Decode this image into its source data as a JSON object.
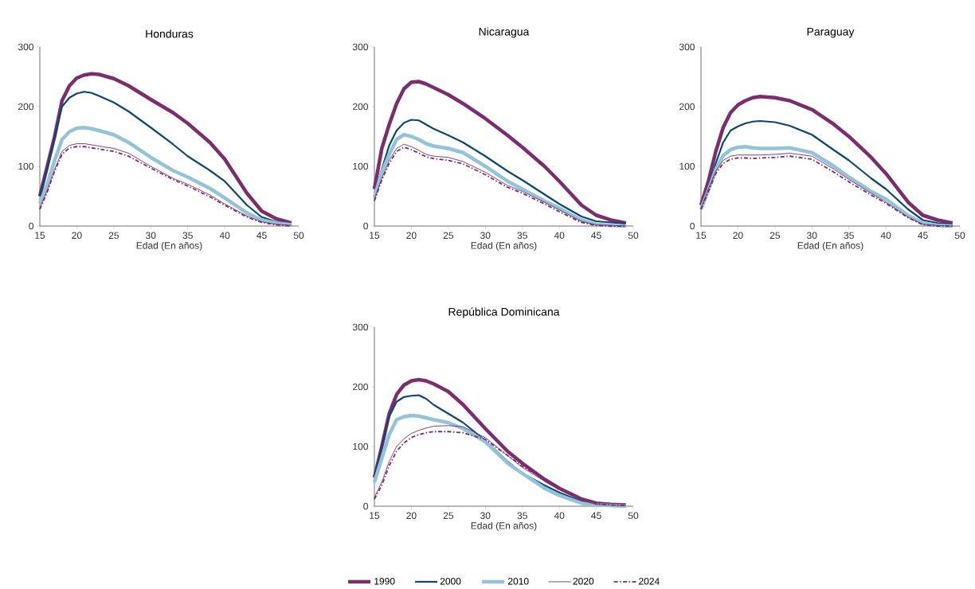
{
  "chart_data": [
    {
      "type": "line",
      "title": "Honduras",
      "xlabel": "Edad (En años)",
      "xlim": [
        15,
        50
      ],
      "xticks": [
        15,
        20,
        25,
        30,
        35,
        40,
        45,
        50
      ],
      "ylim": [
        0,
        300
      ],
      "yticks": [
        0,
        100,
        200,
        300
      ],
      "marker": "none",
      "legend": false,
      "x": [
        15,
        16,
        17,
        18,
        19,
        20,
        21,
        22,
        23,
        25,
        27,
        30,
        33,
        35,
        38,
        40,
        43,
        45,
        47,
        49
      ],
      "series": [
        {
          "color": "#7b2d6e",
          "line_style": "solid",
          "values": [
            50,
            100,
            150,
            210,
            235,
            248,
            253,
            255,
            254,
            247,
            235,
            212,
            190,
            172,
            140,
            112,
            55,
            25,
            12,
            5
          ]
        },
        {
          "color": "#0b4a6e",
          "line_style": "solid",
          "values": [
            50,
            95,
            150,
            200,
            215,
            222,
            225,
            223,
            218,
            207,
            192,
            165,
            137,
            117,
            93,
            75,
            35,
            15,
            7,
            3
          ]
        },
        {
          "color": "#93c3d8",
          "line_style": "solid",
          "values": [
            38,
            70,
            110,
            145,
            158,
            164,
            165,
            163,
            160,
            153,
            140,
            115,
            93,
            82,
            63,
            47,
            22,
            10,
            5,
            2
          ]
        },
        {
          "color": "#7b2d6e",
          "line_style": "solid",
          "values": [
            30,
            60,
            95,
            125,
            135,
            138,
            138,
            136,
            134,
            130,
            122,
            100,
            80,
            70,
            52,
            37,
            17,
            7,
            3,
            1
          ]
        },
        {
          "color": "#7b2d6e",
          "line_style": "dashed",
          "values": [
            28,
            57,
            92,
            120,
            131,
            133,
            133,
            131,
            129,
            125,
            117,
            97,
            78,
            67,
            49,
            35,
            15,
            6,
            2,
            0
          ]
        }
      ]
    },
    {
      "type": "line",
      "title": "Nicaragua",
      "xlabel": "Edad (En años)",
      "xlim": [
        15,
        50
      ],
      "xticks": [
        15,
        20,
        25,
        30,
        35,
        40,
        45,
        50
      ],
      "ylim": [
        0,
        300
      ],
      "yticks": [
        0,
        100,
        200,
        300
      ],
      "marker": "none",
      "legend": false,
      "x": [
        15,
        16,
        17,
        18,
        19,
        20,
        21,
        22,
        23,
        25,
        27,
        30,
        33,
        35,
        38,
        40,
        43,
        45,
        47,
        49
      ],
      "series": [
        {
          "color": "#7b2d6e",
          "line_style": "solid",
          "values": [
            62,
            130,
            170,
            205,
            230,
            241,
            242,
            238,
            232,
            220,
            205,
            180,
            152,
            132,
            100,
            75,
            35,
            18,
            10,
            5
          ]
        },
        {
          "color": "#0b4a6e",
          "line_style": "solid",
          "values": [
            50,
            95,
            135,
            160,
            173,
            178,
            177,
            170,
            163,
            152,
            140,
            117,
            92,
            77,
            53,
            37,
            16,
            8,
            6,
            4
          ]
        },
        {
          "color": "#93c3d8",
          "line_style": "solid",
          "values": [
            48,
            90,
            120,
            145,
            153,
            150,
            145,
            138,
            134,
            130,
            123,
            100,
            75,
            62,
            42,
            30,
            10,
            3,
            1,
            0
          ]
        },
        {
          "color": "#7b2d6e",
          "line_style": "solid",
          "values": [
            45,
            80,
            110,
            130,
            137,
            133,
            127,
            120,
            117,
            115,
            108,
            90,
            68,
            58,
            40,
            27,
            8,
            2,
            1,
            0
          ]
        },
        {
          "color": "#7b2d6e",
          "line_style": "dashed",
          "values": [
            42,
            77,
            105,
            125,
            132,
            128,
            122,
            116,
            113,
            110,
            104,
            86,
            65,
            55,
            37,
            24,
            6,
            1,
            0,
            0
          ]
        }
      ]
    },
    {
      "type": "line",
      "title": "Paraguay",
      "xlabel": "Edad (En años)",
      "xlim": [
        15,
        50
      ],
      "xticks": [
        15,
        20,
        25,
        30,
        35,
        40,
        45,
        50
      ],
      "ylim": [
        0,
        300
      ],
      "yticks": [
        0,
        100,
        200,
        300
      ],
      "marker": "none",
      "legend": false,
      "x": [
        15,
        16,
        17,
        18,
        19,
        20,
        21,
        22,
        23,
        25,
        27,
        30,
        33,
        35,
        38,
        40,
        43,
        45,
        47,
        49
      ],
      "series": [
        {
          "color": "#7b2d6e",
          "line_style": "solid",
          "values": [
            35,
            75,
            125,
            165,
            190,
            203,
            210,
            215,
            217,
            215,
            210,
            195,
            170,
            150,
            115,
            88,
            40,
            18,
            10,
            5
          ]
        },
        {
          "color": "#0b4a6e",
          "line_style": "solid",
          "values": [
            30,
            65,
            105,
            140,
            160,
            167,
            172,
            175,
            176,
            174,
            168,
            153,
            127,
            110,
            80,
            62,
            28,
            10,
            5,
            3
          ]
        },
        {
          "color": "#93c3d8",
          "line_style": "solid",
          "values": [
            28,
            60,
            95,
            118,
            128,
            132,
            133,
            131,
            130,
            130,
            131,
            123,
            100,
            82,
            58,
            45,
            18,
            5,
            1,
            0
          ]
        },
        {
          "color": "#7b2d6e",
          "line_style": "solid",
          "values": [
            30,
            62,
            92,
            110,
            117,
            119,
            119,
            119,
            119,
            120,
            122,
            117,
            95,
            78,
            55,
            40,
            15,
            3,
            1,
            0
          ]
        },
        {
          "color": "#7b2d6e",
          "line_style": "dashed",
          "values": [
            28,
            58,
            88,
            105,
            112,
            114,
            114,
            113,
            114,
            115,
            117,
            112,
            90,
            74,
            52,
            38,
            14,
            2,
            0,
            0
          ]
        }
      ]
    },
    {
      "type": "line",
      "title": "República Dominicana",
      "xlabel": "Edad (En años)",
      "xlim": [
        15,
        50
      ],
      "xticks": [
        15,
        20,
        25,
        30,
        35,
        40,
        45,
        50
      ],
      "ylim": [
        0,
        300
      ],
      "yticks": [
        0,
        100,
        200,
        300
      ],
      "marker": "none",
      "legend": "bottom",
      "x": [
        15,
        16,
        17,
        18,
        19,
        20,
        21,
        22,
        23,
        25,
        27,
        30,
        33,
        35,
        38,
        40,
        43,
        45,
        47,
        49
      ],
      "series": [
        {
          "name": "1990",
          "color": "#7b2d6e",
          "line_style": "solid",
          "values": [
            48,
            100,
            155,
            187,
            203,
            210,
            212,
            210,
            205,
            192,
            170,
            130,
            92,
            72,
            45,
            30,
            12,
            5,
            3,
            2
          ]
        },
        {
          "name": "2000",
          "color": "#0b4a6e",
          "line_style": "solid",
          "values": [
            48,
            100,
            150,
            175,
            183,
            185,
            186,
            180,
            170,
            155,
            140,
            110,
            75,
            55,
            35,
            23,
            8,
            3,
            2,
            1
          ]
        },
        {
          "name": "2010",
          "color": "#93c3d8",
          "line_style": "solid",
          "values": [
            40,
            80,
            120,
            145,
            150,
            152,
            151,
            148,
            145,
            140,
            130,
            108,
            72,
            55,
            30,
            18,
            5,
            2,
            1,
            0
          ]
        },
        {
          "name": "2020",
          "color": "#7b2d6e",
          "line_style": "solid",
          "values": [
            15,
            40,
            75,
            100,
            113,
            122,
            127,
            131,
            134,
            135,
            133,
            115,
            85,
            65,
            42,
            28,
            10,
            3,
            2,
            1
          ]
        },
        {
          "name": "2024",
          "color": "#7b2d6e",
          "line_style": "dashed",
          "values": [
            12,
            35,
            68,
            92,
            106,
            115,
            120,
            123,
            125,
            125,
            123,
            112,
            85,
            67,
            45,
            30,
            11,
            4,
            2,
            1
          ]
        }
      ]
    }
  ]
}
